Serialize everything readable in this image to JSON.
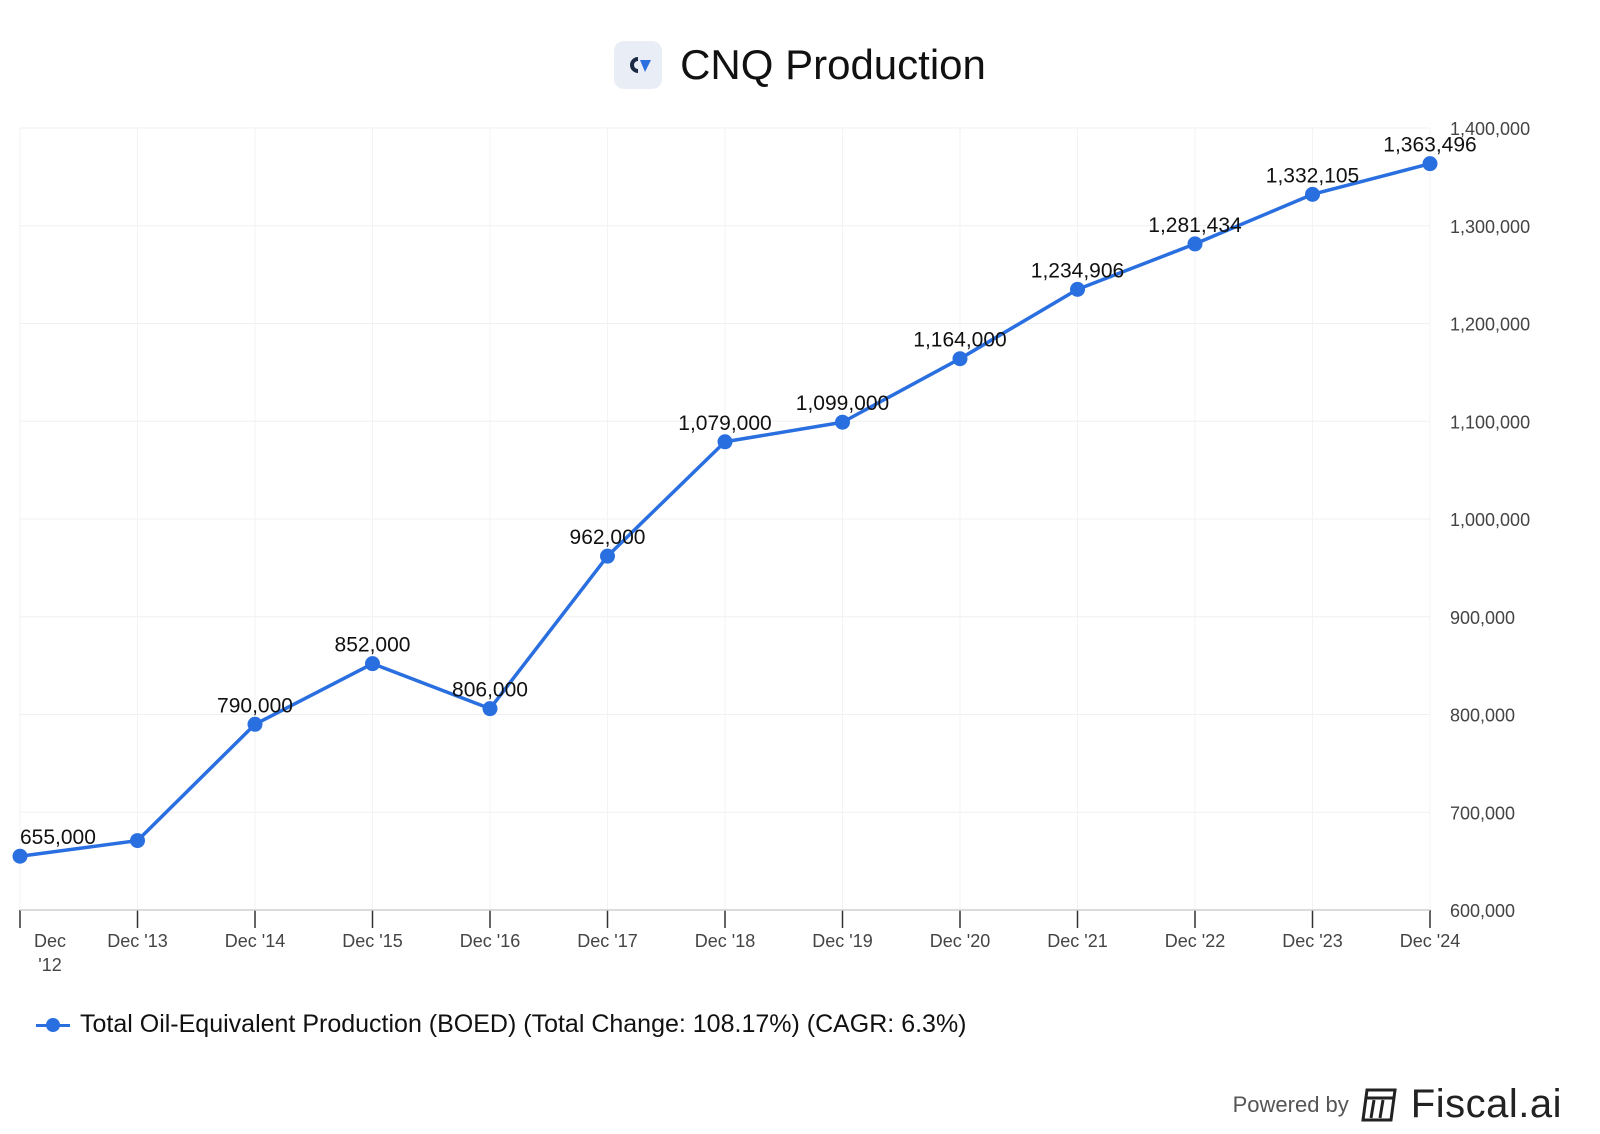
{
  "header": {
    "title": "CNQ Production",
    "logo_icon": "cnq-logo-icon"
  },
  "chart_data": {
    "type": "line",
    "title": "CNQ Production",
    "categories": [
      "Dec '12",
      "Dec '13",
      "Dec '14",
      "Dec '15",
      "Dec '16",
      "Dec '17",
      "Dec '18",
      "Dec '19",
      "Dec '20",
      "Dec '21",
      "Dec '22",
      "Dec '23",
      "Dec '24"
    ],
    "category_labels": [
      [
        "Dec",
        "'12"
      ],
      [
        "Dec '13"
      ],
      [
        "Dec '14"
      ],
      [
        "Dec '15"
      ],
      [
        "Dec '16"
      ],
      [
        "Dec '17"
      ],
      [
        "Dec '18"
      ],
      [
        "Dec '19"
      ],
      [
        "Dec '20"
      ],
      [
        "Dec '21"
      ],
      [
        "Dec '22"
      ],
      [
        "Dec '23"
      ],
      [
        "Dec '24"
      ]
    ],
    "series": [
      {
        "name": "Total Oil-Equivalent Production (BOED) (Total Change: 108.17%) (CAGR: 6.3%)",
        "values": [
          655000,
          671000,
          790000,
          852000,
          806000,
          962000,
          1079000,
          1099000,
          1164000,
          1234906,
          1281434,
          1332105,
          1363496
        ],
        "data_labels": [
          "655,000",
          "",
          "790,000",
          "852,000",
          "806,000",
          "962,000",
          "1,079,000",
          "1,099,000",
          "1,164,000",
          "1,234,906",
          "1,281,434",
          "1,332,105",
          "1,363,496"
        ],
        "color": "#2a6fe0"
      }
    ],
    "ylim": [
      600000,
      1400000
    ],
    "yticks": [
      600000,
      700000,
      800000,
      900000,
      1000000,
      1100000,
      1200000,
      1300000,
      1400000
    ],
    "ytick_labels": [
      "600,000",
      "700,000",
      "800,000",
      "900,000",
      "1,000,000",
      "1,100,000",
      "1,200,000",
      "1,300,000",
      "1,400,000"
    ],
    "y_axis_side": "right",
    "grid": true,
    "legend_position": "bottom-left"
  },
  "footer": {
    "powered_label": "Powered by",
    "brand": "Fiscal.ai",
    "brand_icon": "fiscal-logo-icon"
  }
}
